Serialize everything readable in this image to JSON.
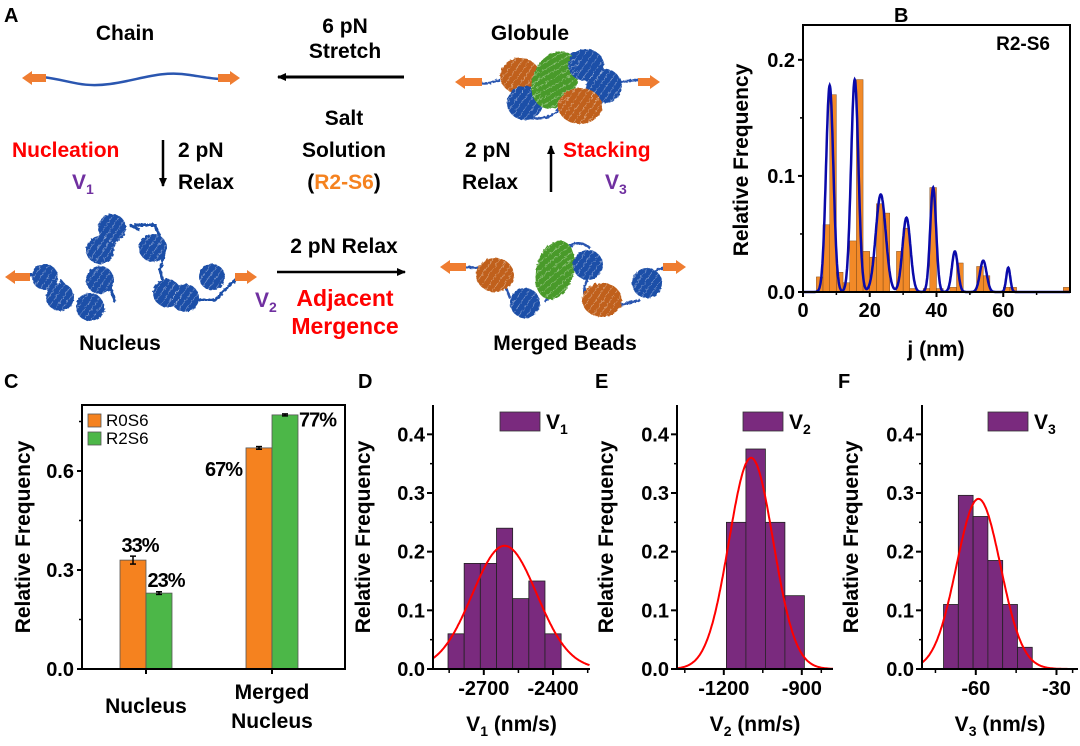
{
  "colors": {
    "orange": "#f5821f",
    "green": "#4cb748",
    "purple": "#7a2a7e",
    "red": "#ff0000",
    "violet": "#7030a0",
    "bead_blue": "#1f4fa8",
    "bead_orange": "#c0601a",
    "bead_green": "#4a9a2a",
    "fit_blue": "#0a0aaa",
    "bar_orange": "#f28a28",
    "text": "#000000"
  },
  "panel_a": {
    "label": "A",
    "states": {
      "chain": "Chain",
      "globule": "Globule",
      "nucleus": "Nucleus",
      "merged_beads": "Merged Beads"
    },
    "arrows": {
      "stretch_force": "6 pN",
      "stretch_label": "Stretch",
      "salt_line1": "Salt",
      "salt_line2": "Solution",
      "salt_open": "(",
      "salt_sample": "R2-S6",
      "salt_close": ")",
      "relax_left_force": "2 pN",
      "relax_left_label": "Relax",
      "relax_right_force": "2 pN",
      "relax_right_label": "Relax",
      "relax_bottom": "2 pN Relax"
    },
    "processes": {
      "nucleation": "Nucleation",
      "stacking": "Stacking",
      "adjacent": "Adjacent",
      "mergence": "Mergence"
    },
    "velocities": {
      "v": "V",
      "v1_sub": "1",
      "v2_sub": "2",
      "v3_sub": "3"
    }
  },
  "chart_data": [
    {
      "id": "B",
      "type": "bar",
      "panel_label": "B",
      "title": "R2-S6",
      "xlabel": "j (nm)",
      "ylabel": "Relative Frequency",
      "xlim": [
        0,
        80
      ],
      "ylim": [
        0,
        0.23
      ],
      "xticks": [
        0,
        20,
        40,
        60
      ],
      "xticks_minor": [
        10,
        30,
        50,
        70
      ],
      "yticks": [
        0.0,
        0.1,
        0.2
      ],
      "ytick_labels": [
        "0.0",
        "0.1",
        "0.2"
      ],
      "bin_width": 2,
      "bins": [
        {
          "x": 4,
          "y": 0.013
        },
        {
          "x": 6,
          "y": 0.058
        },
        {
          "x": 8,
          "y": 0.17
        },
        {
          "x": 10,
          "y": 0.017
        },
        {
          "x": 12,
          "y": 0.008
        },
        {
          "x": 14,
          "y": 0.044
        },
        {
          "x": 16,
          "y": 0.183
        },
        {
          "x": 18,
          "y": 0.035
        },
        {
          "x": 20,
          "y": 0.03
        },
        {
          "x": 22,
          "y": 0.076
        },
        {
          "x": 24,
          "y": 0.068
        },
        {
          "x": 28,
          "y": 0.035
        },
        {
          "x": 30,
          "y": 0.055
        },
        {
          "x": 32,
          "y": 0.003
        },
        {
          "x": 36,
          "y": 0.003
        },
        {
          "x": 38,
          "y": 0.09
        },
        {
          "x": 40,
          "y": 0.003
        },
        {
          "x": 44,
          "y": 0.004
        },
        {
          "x": 46,
          "y": 0.025
        },
        {
          "x": 52,
          "y": 0.022
        },
        {
          "x": 54,
          "y": 0.014
        },
        {
          "x": 60,
          "y": 0.004
        },
        {
          "x": 62,
          "y": 0.004
        },
        {
          "x": 78,
          "y": 0.004
        }
      ],
      "fit_peaks": [
        {
          "mu": 8.0,
          "amp": 0.178,
          "sigma": 1.1
        },
        {
          "mu": 15.5,
          "amp": 0.183,
          "sigma": 1.1
        },
        {
          "mu": 23.3,
          "amp": 0.084,
          "sigma": 1.5
        },
        {
          "mu": 31.0,
          "amp": 0.064,
          "sigma": 1.2
        },
        {
          "mu": 39.0,
          "amp": 0.09,
          "sigma": 0.9
        },
        {
          "mu": 45.5,
          "amp": 0.035,
          "sigma": 0.9
        },
        {
          "mu": 54.0,
          "amp": 0.027,
          "sigma": 1.0
        },
        {
          "mu": 61.5,
          "amp": 0.021,
          "sigma": 0.6
        }
      ]
    },
    {
      "id": "C",
      "type": "bar",
      "panel_label": "C",
      "ylabel": "Relative Frequency",
      "categories": [
        "Nucleus",
        "Merged Nucleus"
      ],
      "category_lines": [
        [
          "Nucleus"
        ],
        [
          "Merged",
          "Nucleus"
        ]
      ],
      "ylim": [
        0,
        0.8
      ],
      "yticks": [
        0.0,
        0.3,
        0.6
      ],
      "ytick_labels": [
        "0.0",
        "0.3",
        "0.6"
      ],
      "yticks_minor": [
        0.15,
        0.45,
        0.75
      ],
      "series": [
        {
          "name": "R0S6",
          "values": [
            0.33,
            0.67
          ],
          "errors": [
            0.012,
            0.004
          ],
          "labels": [
            "33%",
            "67%"
          ]
        },
        {
          "name": "R2S6",
          "values": [
            0.23,
            0.77
          ],
          "errors": [
            0.004,
            0.003
          ],
          "labels": [
            "23%",
            "77%"
          ]
        }
      ],
      "legend": "top-left"
    },
    {
      "id": "D",
      "type": "bar",
      "panel_label": "D",
      "ylabel": "Relative Frequency",
      "xlabel_main": "V",
      "xlabel_sub": "1",
      "xlabel_unit": " (nm/s)",
      "legend_main": "V",
      "legend_sub": "1",
      "xlim": [
        -2920,
        -2240
      ],
      "xticks": [
        -2700,
        -2400
      ],
      "xtick_labels": [
        "-2700",
        "-2400"
      ],
      "xticks_minor": [
        -2850,
        -2550,
        -2250
      ],
      "ylim": [
        0,
        0.45
      ],
      "yticks": [
        0.0,
        0.1,
        0.2,
        0.3,
        0.4
      ],
      "ytick_labels": [
        "0.0",
        "0.1",
        "0.2",
        "0.3",
        "0.4"
      ],
      "bins": [
        {
          "x0": -2855,
          "x1": -2785,
          "y": 0.06
        },
        {
          "x0": -2785,
          "x1": -2715,
          "y": 0.18
        },
        {
          "x0": -2715,
          "x1": -2645,
          "y": 0.18
        },
        {
          "x0": -2645,
          "x1": -2575,
          "y": 0.24
        },
        {
          "x0": -2575,
          "x1": -2505,
          "y": 0.12
        },
        {
          "x0": -2505,
          "x1": -2435,
          "y": 0.15
        },
        {
          "x0": -2435,
          "x1": -2365,
          "y": 0.06
        }
      ],
      "fit": {
        "mu": -2610,
        "sigma": 140,
        "amp": 0.21
      }
    },
    {
      "id": "E",
      "type": "bar",
      "panel_label": "E",
      "ylabel": "Relative Frequency",
      "xlabel_main": "V",
      "xlabel_sub": "2",
      "xlabel_unit": " (nm/s)",
      "legend_main": "V",
      "legend_sub": "2",
      "xlim": [
        -1380,
        -780
      ],
      "xticks": [
        -1200,
        -900
      ],
      "xtick_labels": [
        "-1200",
        "-900"
      ],
      "xticks_minor": [
        -1350,
        -1050,
        -825
      ],
      "ylim": [
        0,
        0.45
      ],
      "yticks": [
        0.0,
        0.1,
        0.2,
        0.3,
        0.4
      ],
      "ytick_labels": [
        "0.0",
        "0.1",
        "0.2",
        "0.3",
        "0.4"
      ],
      "bins": [
        {
          "x0": -1190,
          "x1": -1115,
          "y": 0.25
        },
        {
          "x0": -1115,
          "x1": -1040,
          "y": 0.375
        },
        {
          "x0": -1040,
          "x1": -965,
          "y": 0.25
        },
        {
          "x0": -965,
          "x1": -890,
          "y": 0.125
        }
      ],
      "fit": {
        "mu": -1095,
        "sigma": 85,
        "amp": 0.36
      }
    },
    {
      "id": "F",
      "type": "bar",
      "panel_label": "F",
      "ylabel": "Relative Frequency",
      "xlabel_main": "V",
      "xlabel_sub": "3",
      "xlabel_unit": " (nm/s)",
      "legend_main": "V",
      "legend_sub": "3",
      "xlim": [
        -80,
        -22
      ],
      "xticks": [
        -60,
        -30
      ],
      "xtick_labels": [
        "-60",
        "-30"
      ],
      "xticks_minor": [
        -75,
        -45,
        -24
      ],
      "ylim": [
        0,
        0.45
      ],
      "yticks": [
        0.0,
        0.1,
        0.2,
        0.3,
        0.4
      ],
      "ytick_labels": [
        "0.0",
        "0.1",
        "0.2",
        "0.3",
        "0.4"
      ],
      "bins": [
        {
          "x0": -72,
          "x1": -66.5,
          "y": 0.11
        },
        {
          "x0": -66.5,
          "x1": -61,
          "y": 0.296
        },
        {
          "x0": -61,
          "x1": -55.5,
          "y": 0.26
        },
        {
          "x0": -55.5,
          "x1": -50,
          "y": 0.185
        },
        {
          "x0": -50,
          "x1": -44.5,
          "y": 0.11
        },
        {
          "x0": -44.5,
          "x1": -39,
          "y": 0.037
        }
      ],
      "fit": {
        "mu": -59,
        "sigma": 8.2,
        "amp": 0.29
      }
    }
  ]
}
